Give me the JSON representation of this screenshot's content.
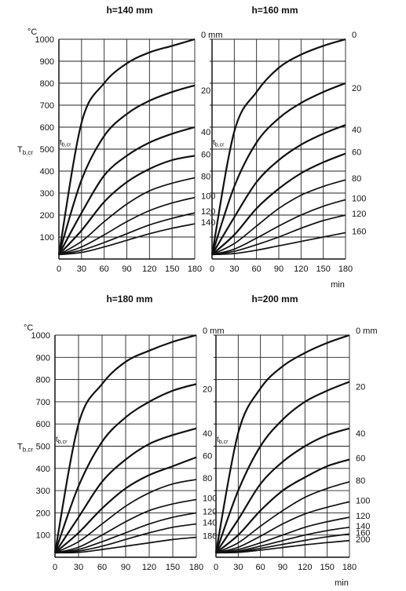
{
  "figure": {
    "y_axis_label": "T",
    "y_axis_label_sub": "b,cr",
    "curve_label": "t",
    "curve_label_sub": "b,cr",
    "x_unit": "min",
    "y_unit": "°C",
    "depth_unit": "mm"
  },
  "chart_data": [
    {
      "type": "line",
      "title": "h=140 mm",
      "xlabel": "min",
      "ylabel": "T b,cr (°C)",
      "xlim": [
        0,
        180
      ],
      "ylim": [
        0,
        1000
      ],
      "x_ticks": [
        "0",
        "30",
        "60",
        "90",
        "120",
        "150",
        "180"
      ],
      "y_ticks": [
        "100",
        "200",
        "300",
        "400",
        "500",
        "600",
        "700",
        "800",
        "900",
        "1000"
      ],
      "x": [
        0,
        30,
        60,
        90,
        120,
        150,
        180
      ],
      "grid": true,
      "series": [
        {
          "name": "0 mm",
          "values": [
            20,
            620,
            800,
            890,
            940,
            970,
            1000
          ]
        },
        {
          "name": "20",
          "values": [
            20,
            360,
            560,
            660,
            720,
            760,
            790
          ]
        },
        {
          "name": "40",
          "values": [
            20,
            210,
            380,
            470,
            530,
            570,
            600
          ]
        },
        {
          "name": "60",
          "values": [
            20,
            130,
            260,
            350,
            410,
            450,
            470
          ]
        },
        {
          "name": "80",
          "values": [
            20,
            80,
            170,
            250,
            310,
            345,
            370
          ]
        },
        {
          "name": "100",
          "values": [
            20,
            55,
            110,
            170,
            220,
            255,
            280
          ]
        },
        {
          "name": "120",
          "values": [
            20,
            40,
            75,
            115,
            155,
            185,
            210
          ]
        },
        {
          "name": "140",
          "values": [
            20,
            30,
            55,
            85,
            115,
            140,
            160
          ]
        }
      ]
    },
    {
      "type": "line",
      "title": "h=160 mm",
      "xlabel": "min",
      "ylabel": "",
      "xlim": [
        0,
        180
      ],
      "ylim": [
        0,
        1000
      ],
      "x_ticks": [
        "0",
        "30",
        "60",
        "90",
        "120",
        "150",
        "180"
      ],
      "x": [
        0,
        30,
        60,
        90,
        120,
        150,
        180
      ],
      "grid": true,
      "series": [
        {
          "name": "0",
          "values": [
            20,
            580,
            760,
            870,
            930,
            970,
            1000
          ]
        },
        {
          "name": "20",
          "values": [
            20,
            330,
            530,
            640,
            710,
            760,
            800
          ]
        },
        {
          "name": "40",
          "values": [
            20,
            190,
            350,
            450,
            520,
            570,
            610
          ]
        },
        {
          "name": "60",
          "values": [
            20,
            110,
            230,
            320,
            390,
            440,
            480
          ]
        },
        {
          "name": "80",
          "values": [
            20,
            70,
            150,
            230,
            290,
            330,
            360
          ]
        },
        {
          "name": "100",
          "values": [
            20,
            45,
            95,
            150,
            200,
            240,
            270
          ]
        },
        {
          "name": "120",
          "values": [
            20,
            35,
            65,
            100,
            140,
            175,
            200
          ]
        },
        {
          "name": "160",
          "values": [
            20,
            25,
            40,
            60,
            80,
            100,
            120
          ]
        }
      ]
    },
    {
      "type": "line",
      "title": "h=180 mm",
      "xlabel": "min",
      "ylabel": "T b,cr (°C)",
      "xlim": [
        0,
        180
      ],
      "ylim": [
        0,
        1000
      ],
      "x_ticks": [
        "0",
        "30",
        "60",
        "90",
        "120",
        "150",
        "180"
      ],
      "y_ticks": [
        "100",
        "200",
        "300",
        "400",
        "500",
        "600",
        "700",
        "800",
        "900",
        "1000"
      ],
      "x": [
        0,
        30,
        60,
        90,
        120,
        150,
        180
      ],
      "grid": true,
      "series": [
        {
          "name": "0 mm",
          "values": [
            20,
            600,
            780,
            880,
            930,
            970,
            1000
          ]
        },
        {
          "name": "20",
          "values": [
            20,
            320,
            520,
            630,
            700,
            750,
            780
          ]
        },
        {
          "name": "40",
          "values": [
            20,
            180,
            340,
            440,
            510,
            550,
            580
          ]
        },
        {
          "name": "60",
          "values": [
            20,
            110,
            220,
            310,
            370,
            410,
            450
          ]
        },
        {
          "name": "80",
          "values": [
            20,
            70,
            150,
            230,
            290,
            330,
            350
          ]
        },
        {
          "name": "100",
          "values": [
            20,
            45,
            100,
            160,
            210,
            240,
            260
          ]
        },
        {
          "name": "120",
          "values": [
            20,
            35,
            70,
            110,
            150,
            180,
            200
          ]
        },
        {
          "name": "140",
          "values": [
            20,
            28,
            50,
            80,
            110,
            135,
            150
          ]
        },
        {
          "name": "180",
          "values": [
            20,
            22,
            35,
            50,
            65,
            80,
            90
          ]
        }
      ]
    },
    {
      "type": "line",
      "title": "h=200 mm",
      "xlabel": "min",
      "ylabel": "",
      "xlim": [
        0,
        180
      ],
      "ylim": [
        0,
        1000
      ],
      "x_ticks": [
        "0",
        "30",
        "60",
        "90",
        "120",
        "150",
        "180"
      ],
      "x": [
        0,
        30,
        60,
        90,
        120,
        150,
        180
      ],
      "grid": true,
      "series": [
        {
          "name": "0 mm",
          "values": [
            20,
            560,
            760,
            860,
            920,
            965,
            1000
          ]
        },
        {
          "name": "20",
          "values": [
            20,
            300,
            500,
            620,
            700,
            750,
            790
          ]
        },
        {
          "name": "40",
          "values": [
            20,
            170,
            330,
            430,
            500,
            550,
            580
          ]
        },
        {
          "name": "60",
          "values": [
            20,
            100,
            210,
            300,
            360,
            410,
            440
          ]
        },
        {
          "name": "80",
          "values": [
            20,
            65,
            140,
            210,
            270,
            310,
            340
          ]
        },
        {
          "name": "100",
          "values": [
            20,
            45,
            95,
            150,
            195,
            225,
            250
          ]
        },
        {
          "name": "120",
          "values": [
            20,
            35,
            65,
            100,
            135,
            160,
            180
          ]
        },
        {
          "name": "140",
          "values": [
            20,
            28,
            50,
            75,
            100,
            120,
            135
          ]
        },
        {
          "name": "160",
          "values": [
            20,
            24,
            40,
            58,
            76,
            92,
            105
          ]
        },
        {
          "name": "200",
          "values": [
            20,
            22,
            32,
            44,
            56,
            66,
            75
          ]
        }
      ]
    }
  ]
}
